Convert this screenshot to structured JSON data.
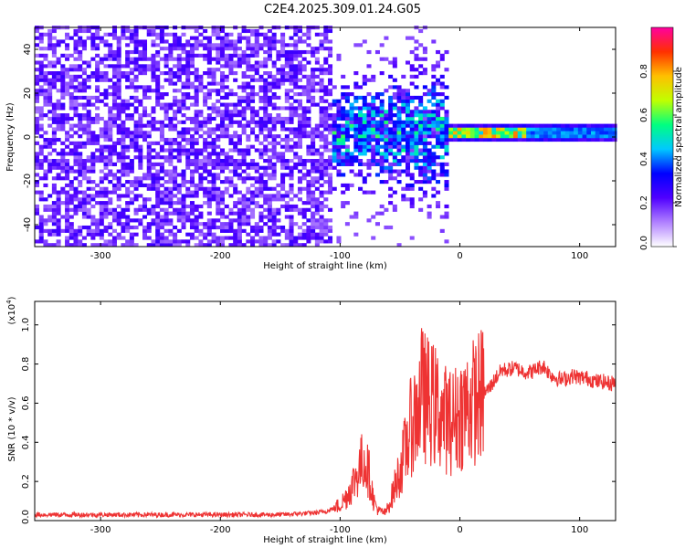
{
  "title": "C2E4.2025.309.01.24.G05",
  "colors": {
    "snr_line": "#ee3333",
    "spectrogram_base": "#6a0dff",
    "frame": "#000000"
  },
  "chart_data": [
    {
      "type": "heatmap",
      "name": "spectrogram",
      "xlabel": "Height of straight line (km)",
      "ylabel": "Frequency (Hz)",
      "xlim": [
        -355,
        130
      ],
      "ylim": [
        -50,
        50
      ],
      "x_ticks": [
        -300,
        -200,
        -100,
        0,
        100
      ],
      "y_ticks": [
        -40,
        -20,
        0,
        20,
        40
      ],
      "colorbar": {
        "label": "Normalized spectral amplitude",
        "range": [
          0,
          1
        ],
        "ticks": [
          "0.0",
          "0.2",
          "0.4",
          "0.6",
          "0.8"
        ],
        "colormap": [
          "#ffffff",
          "#b080ff",
          "#5000ff",
          "#0000ff",
          "#00c8ff",
          "#00ff80",
          "#c0ff00",
          "#ffc000",
          "#ff3000",
          "#ff00a0"
        ]
      },
      "signal_band": {
        "center_hz": 1.5,
        "narrow_from_km": -12,
        "high_amplitude_km": [
          -10,
          55
        ],
        "peak_amplitude": 0.85
      }
    },
    {
      "type": "line",
      "name": "snr",
      "xlabel": "Height of straight line (km)",
      "ylabel": "SNR (10 * v/v)",
      "y_multiplier": "(x10",
      "y_multiplier_exp": "4",
      "y_multiplier_close": ")",
      "xlim": [
        -355,
        130
      ],
      "ylim": [
        0,
        1.12
      ],
      "x_ticks": [
        -300,
        -200,
        -100,
        0,
        100
      ],
      "y_ticks": [
        "0.0",
        "0.2",
        "0.4",
        "0.6",
        "0.8",
        "1.0"
      ],
      "series": [
        {
          "points": [
            [
              -355,
              0.03
            ],
            [
              -345,
              0.03
            ],
            [
              -335,
              0.03
            ],
            [
              -300,
              0.03
            ],
            [
              -250,
              0.03
            ],
            [
              -200,
              0.03
            ],
            [
              -150,
              0.03
            ],
            [
              -120,
              0.04
            ],
            [
              -110,
              0.05
            ],
            [
              -100,
              0.08
            ],
            [
              -95,
              0.12
            ],
            [
              -90,
              0.18
            ],
            [
              -85,
              0.25
            ],
            [
              -80,
              0.32
            ],
            [
              -75,
              0.22
            ],
            [
              -72,
              0.1
            ],
            [
              -68,
              0.05
            ],
            [
              -62,
              0.04
            ],
            [
              -58,
              0.1
            ],
            [
              -52,
              0.22
            ],
            [
              -48,
              0.3
            ],
            [
              -44,
              0.4
            ],
            [
              -40,
              0.5
            ],
            [
              -36,
              0.55
            ],
            [
              -32,
              0.65
            ],
            [
              -28,
              0.62
            ],
            [
              -24,
              0.6
            ],
            [
              -20,
              0.58
            ],
            [
              -16,
              0.55
            ],
            [
              -12,
              0.52
            ],
            [
              -8,
              0.5
            ],
            [
              -4,
              0.52
            ],
            [
              0,
              0.55
            ],
            [
              5,
              0.58
            ],
            [
              10,
              0.6
            ],
            [
              15,
              0.63
            ],
            [
              20,
              0.65
            ],
            [
              25,
              0.68
            ],
            [
              30,
              0.73
            ],
            [
              35,
              0.77
            ],
            [
              40,
              0.77
            ],
            [
              45,
              0.78
            ],
            [
              50,
              0.77
            ],
            [
              55,
              0.76
            ],
            [
              60,
              0.76
            ],
            [
              65,
              0.78
            ],
            [
              70,
              0.79
            ],
            [
              75,
              0.75
            ],
            [
              80,
              0.73
            ],
            [
              85,
              0.72
            ],
            [
              90,
              0.73
            ],
            [
              95,
              0.74
            ],
            [
              100,
              0.73
            ],
            [
              105,
              0.73
            ],
            [
              110,
              0.72
            ],
            [
              115,
              0.71
            ],
            [
              120,
              0.71
            ],
            [
              125,
              0.7
            ],
            [
              130,
              0.71
            ]
          ]
        }
      ]
    }
  ]
}
